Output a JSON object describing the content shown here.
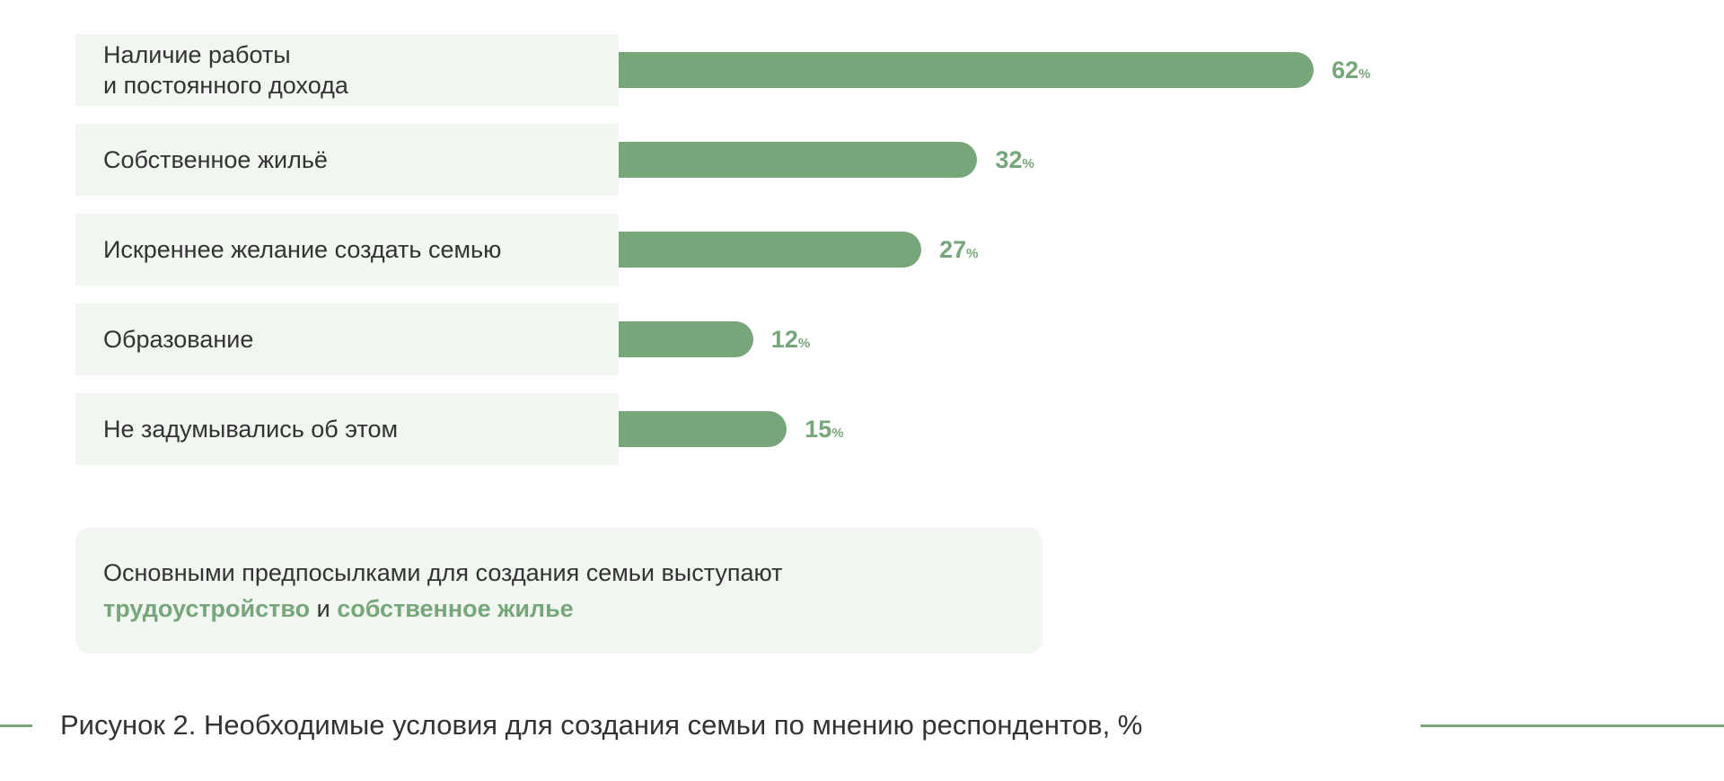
{
  "colors": {
    "bar": "#78a67b",
    "label_bg": "#f1f6f0",
    "text": "#333333",
    "accent": "#78a67b"
  },
  "chart_data": {
    "type": "bar",
    "orientation": "horizontal",
    "categories": [
      "Наличие работы\nи постоянного дохода",
      "Собственное жильё",
      "Искреннее желание создать семью",
      "Образование",
      "Не задумывались об этом"
    ],
    "values": [
      62,
      32,
      27,
      12,
      15
    ],
    "value_suffix": "%",
    "title": "Рисунок 2. Необходимые условия для создания семьи по мнению респондентов, %",
    "xlabel": "",
    "ylabel": "",
    "xlim": [
      0,
      62
    ]
  },
  "callout": {
    "text_before": "Основными предпосылками для создания семьи выступают",
    "highlight1": "трудоустройство",
    "connector": " и ",
    "highlight2": "собственное жилье"
  }
}
